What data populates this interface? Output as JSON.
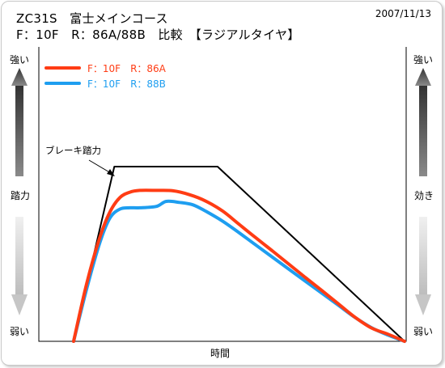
{
  "header": {
    "title_line1": "ZC31S　富士メインコース",
    "title_line2": "F：10F　R：86A/88B　比較　【ラジアルタイヤ】",
    "date": "2007/11/13"
  },
  "colors": {
    "series_a": "#ff3c14",
    "series_b": "#1e9ef0",
    "brake_pedal": "#000000",
    "axis": "#000000",
    "arrow_dark": "#4a4a4a",
    "arrow_light": "#d6d6d6"
  },
  "left_scale": {
    "top": "強い",
    "middle": "踏力",
    "bottom": "弱い"
  },
  "right_scale": {
    "top": "強い",
    "middle": "効き",
    "bottom": "弱い"
  },
  "chart_data": {
    "type": "line",
    "xlabel": "時間",
    "ylabel": "",
    "xlim": [
      0,
      100
    ],
    "ylim": [
      0,
      100
    ],
    "x_ticks": [],
    "y_ticks": [],
    "grid": false,
    "legend_position": "top-left",
    "annotations": [
      {
        "text": "ブレーキ踏力",
        "points_to": "ブレーキ踏力 line",
        "x": 12,
        "y": 98
      }
    ],
    "series": [
      {
        "name": "F：10F　R：86A",
        "color": "#ff3c14",
        "points": [
          [
            0,
            0
          ],
          [
            4,
            33
          ],
          [
            8,
            59
          ],
          [
            11,
            73
          ],
          [
            14,
            81
          ],
          [
            17,
            84
          ],
          [
            20,
            85
          ],
          [
            25,
            85
          ],
          [
            30,
            84.8
          ],
          [
            35,
            82.6
          ],
          [
            40,
            78.9
          ],
          [
            45,
            73.4
          ],
          [
            50,
            65.9
          ],
          [
            55,
            58.4
          ],
          [
            60,
            51
          ],
          [
            65,
            43.5
          ],
          [
            70,
            36
          ],
          [
            75,
            28.6
          ],
          [
            80,
            21.1
          ],
          [
            85,
            13.6
          ],
          [
            90,
            7.5
          ],
          [
            95,
            4
          ],
          [
            100,
            0
          ]
        ]
      },
      {
        "name": "F：10F　R：88B",
        "color": "#1e9ef0",
        "points": [
          [
            0,
            0
          ],
          [
            4,
            30
          ],
          [
            8,
            56
          ],
          [
            11,
            69.5
          ],
          [
            14,
            74.5
          ],
          [
            17,
            75.2
          ],
          [
            20,
            75.2
          ],
          [
            25,
            76
          ],
          [
            28,
            78.8
          ],
          [
            32,
            78.2
          ],
          [
            36,
            76.9
          ],
          [
            40,
            73.2
          ],
          [
            45,
            67.7
          ],
          [
            50,
            61.2
          ],
          [
            55,
            54.3
          ],
          [
            60,
            47.5
          ],
          [
            65,
            40.7
          ],
          [
            70,
            33.9
          ],
          [
            75,
            27.1
          ],
          [
            80,
            20.3
          ],
          [
            85,
            13.5
          ],
          [
            90,
            7.7
          ],
          [
            95,
            3.5
          ],
          [
            100,
            0
          ]
        ]
      },
      {
        "name": "ブレーキ踏力",
        "color": "#000000",
        "points": [
          [
            0,
            0
          ],
          [
            12.3,
            98.4
          ],
          [
            43.5,
            98.4
          ],
          [
            100,
            0
          ]
        ]
      }
    ],
    "legend": [
      "F：10F　R：86A",
      "F：10F　R：88B"
    ]
  }
}
